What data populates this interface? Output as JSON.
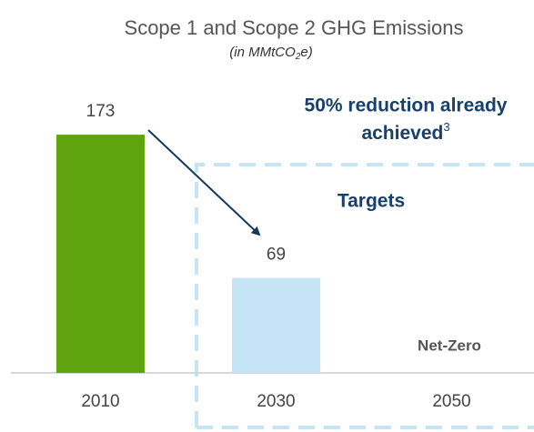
{
  "chart_data": {
    "type": "bar",
    "title": "Scope 1 and Scope 2 GHG Emissions",
    "subtitle": {
      "parts": [
        "(in MMtCO",
        "2",
        "e)"
      ]
    },
    "categories": [
      "2010",
      "2030",
      "2050"
    ],
    "values": [
      173,
      69,
      null
    ],
    "colors": [
      "#5fa30f",
      "#c5e4f6",
      "#c5e4f6"
    ],
    "ylim": [
      0,
      180
    ],
    "annotations": {
      "reduction": {
        "lines": [
          "50% reduction already",
          "achieved"
        ],
        "footnote": "3"
      },
      "targets": "Targets",
      "net_zero": "Net-Zero"
    }
  }
}
